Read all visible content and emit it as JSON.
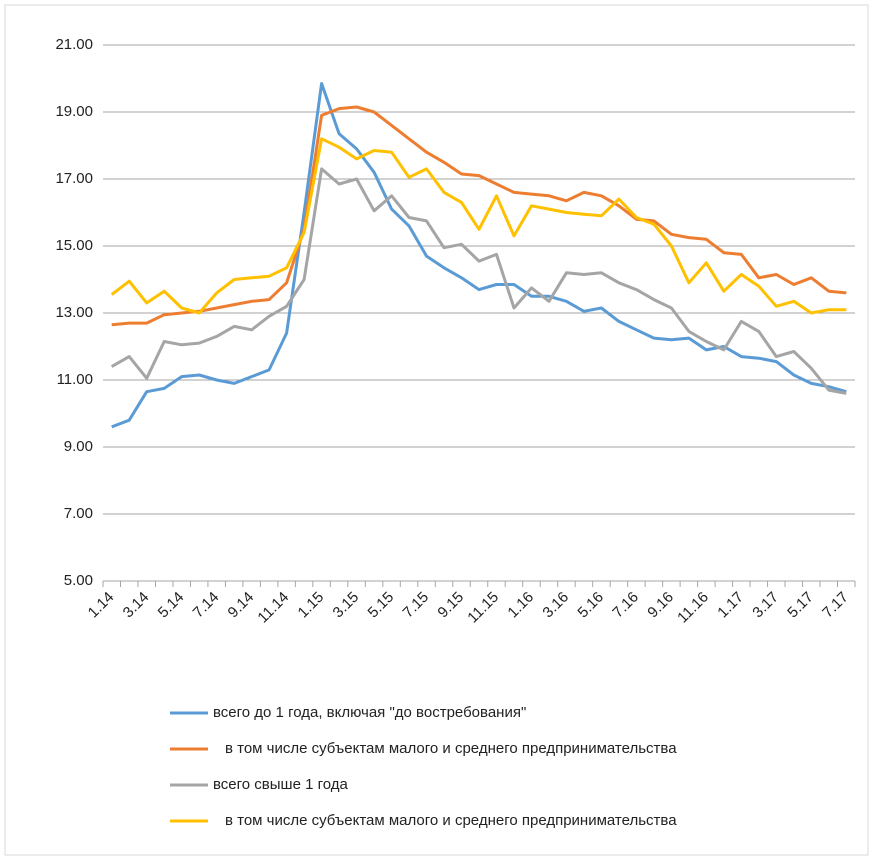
{
  "chart_data": {
    "type": "line",
    "categories": [
      "1.14",
      null,
      "3.14",
      null,
      "5.14",
      null,
      "7.14",
      null,
      "9.14",
      null,
      "11.14",
      null,
      "1.15",
      null,
      "3.15",
      null,
      "5.15",
      null,
      "7.15",
      null,
      "9.15",
      null,
      "11.15",
      null,
      "1.16",
      null,
      "3.16",
      null,
      "5.16",
      null,
      "7.16",
      null,
      "9.16",
      null,
      "11.16",
      null,
      "1.17",
      null,
      "3.17",
      null,
      "5.17",
      null,
      "7.17"
    ],
    "series": [
      {
        "name": "всего до 1 года, включая \"до востребования\"",
        "color": "#5b9bd5",
        "values": [
          9.6,
          9.8,
          10.65,
          10.75,
          11.1,
          11.15,
          11.0,
          10.9,
          11.1,
          11.3,
          12.4,
          16.0,
          19.85,
          18.35,
          17.9,
          17.2,
          16.1,
          15.6,
          14.7,
          14.35,
          14.05,
          13.7,
          13.85,
          13.85,
          13.5,
          13.5,
          13.35,
          13.05,
          13.15,
          12.75,
          12.5,
          12.25,
          12.2,
          12.25,
          11.9,
          12.0,
          11.7,
          11.65,
          11.55,
          11.15,
          10.9,
          10.8,
          10.65
        ]
      },
      {
        "name": "в том числе субъектам малого и среднего предпринимательства",
        "color": "#ed7d31",
        "values": [
          12.65,
          12.7,
          12.7,
          12.95,
          13.0,
          13.05,
          13.15,
          13.25,
          13.35,
          13.4,
          13.9,
          15.5,
          18.9,
          19.1,
          19.15,
          19.0,
          18.6,
          18.2,
          17.8,
          17.5,
          17.15,
          17.1,
          16.85,
          16.6,
          16.55,
          16.5,
          16.35,
          16.6,
          16.5,
          16.2,
          15.8,
          15.75,
          15.35,
          15.25,
          15.2,
          14.8,
          14.75,
          14.05,
          14.15,
          13.85,
          14.05,
          13.65,
          13.6
        ]
      },
      {
        "name": "всего свыше 1 года",
        "color": "#a5a5a5",
        "values": [
          11.4,
          11.7,
          11.05,
          12.15,
          12.05,
          12.1,
          12.3,
          12.6,
          12.5,
          12.9,
          13.2,
          14.0,
          17.3,
          16.85,
          17.0,
          16.05,
          16.5,
          15.85,
          15.75,
          14.95,
          15.05,
          14.55,
          14.75,
          13.15,
          13.75,
          13.35,
          14.2,
          14.15,
          14.2,
          13.9,
          13.7,
          13.4,
          13.15,
          12.45,
          12.15,
          11.9,
          12.75,
          12.45,
          11.7,
          11.85,
          11.35,
          10.7,
          10.6
        ]
      },
      {
        "name": "в том числе субъектам малого и среднего предпринимательства",
        "color": "#ffc000",
        "values": [
          13.55,
          13.95,
          13.3,
          13.65,
          13.15,
          13.0,
          13.6,
          14.0,
          14.05,
          14.1,
          14.35,
          15.4,
          18.2,
          17.95,
          17.6,
          17.85,
          17.8,
          17.05,
          17.3,
          16.6,
          16.3,
          15.5,
          16.5,
          15.3,
          16.2,
          16.1,
          16.0,
          15.95,
          15.9,
          16.4,
          15.85,
          15.65,
          15.0,
          13.9,
          14.5,
          13.65,
          14.15,
          13.8,
          13.2,
          13.35,
          13.0,
          13.1,
          13.1
        ]
      }
    ],
    "ylim": [
      5,
      21
    ],
    "yticks": [
      {
        "value": 5,
        "label": "5.00"
      },
      {
        "value": 7,
        "label": "7.00"
      },
      {
        "value": 9,
        "label": "9.00"
      },
      {
        "value": 11,
        "label": "11.00"
      },
      {
        "value": 13,
        "label": "13.00"
      },
      {
        "value": 15,
        "label": "15.00"
      },
      {
        "value": 17,
        "label": "17.00"
      },
      {
        "value": 19,
        "label": "19.00"
      },
      {
        "value": 21,
        "label": "21.00"
      }
    ],
    "grid": true,
    "legend": "bottom"
  }
}
